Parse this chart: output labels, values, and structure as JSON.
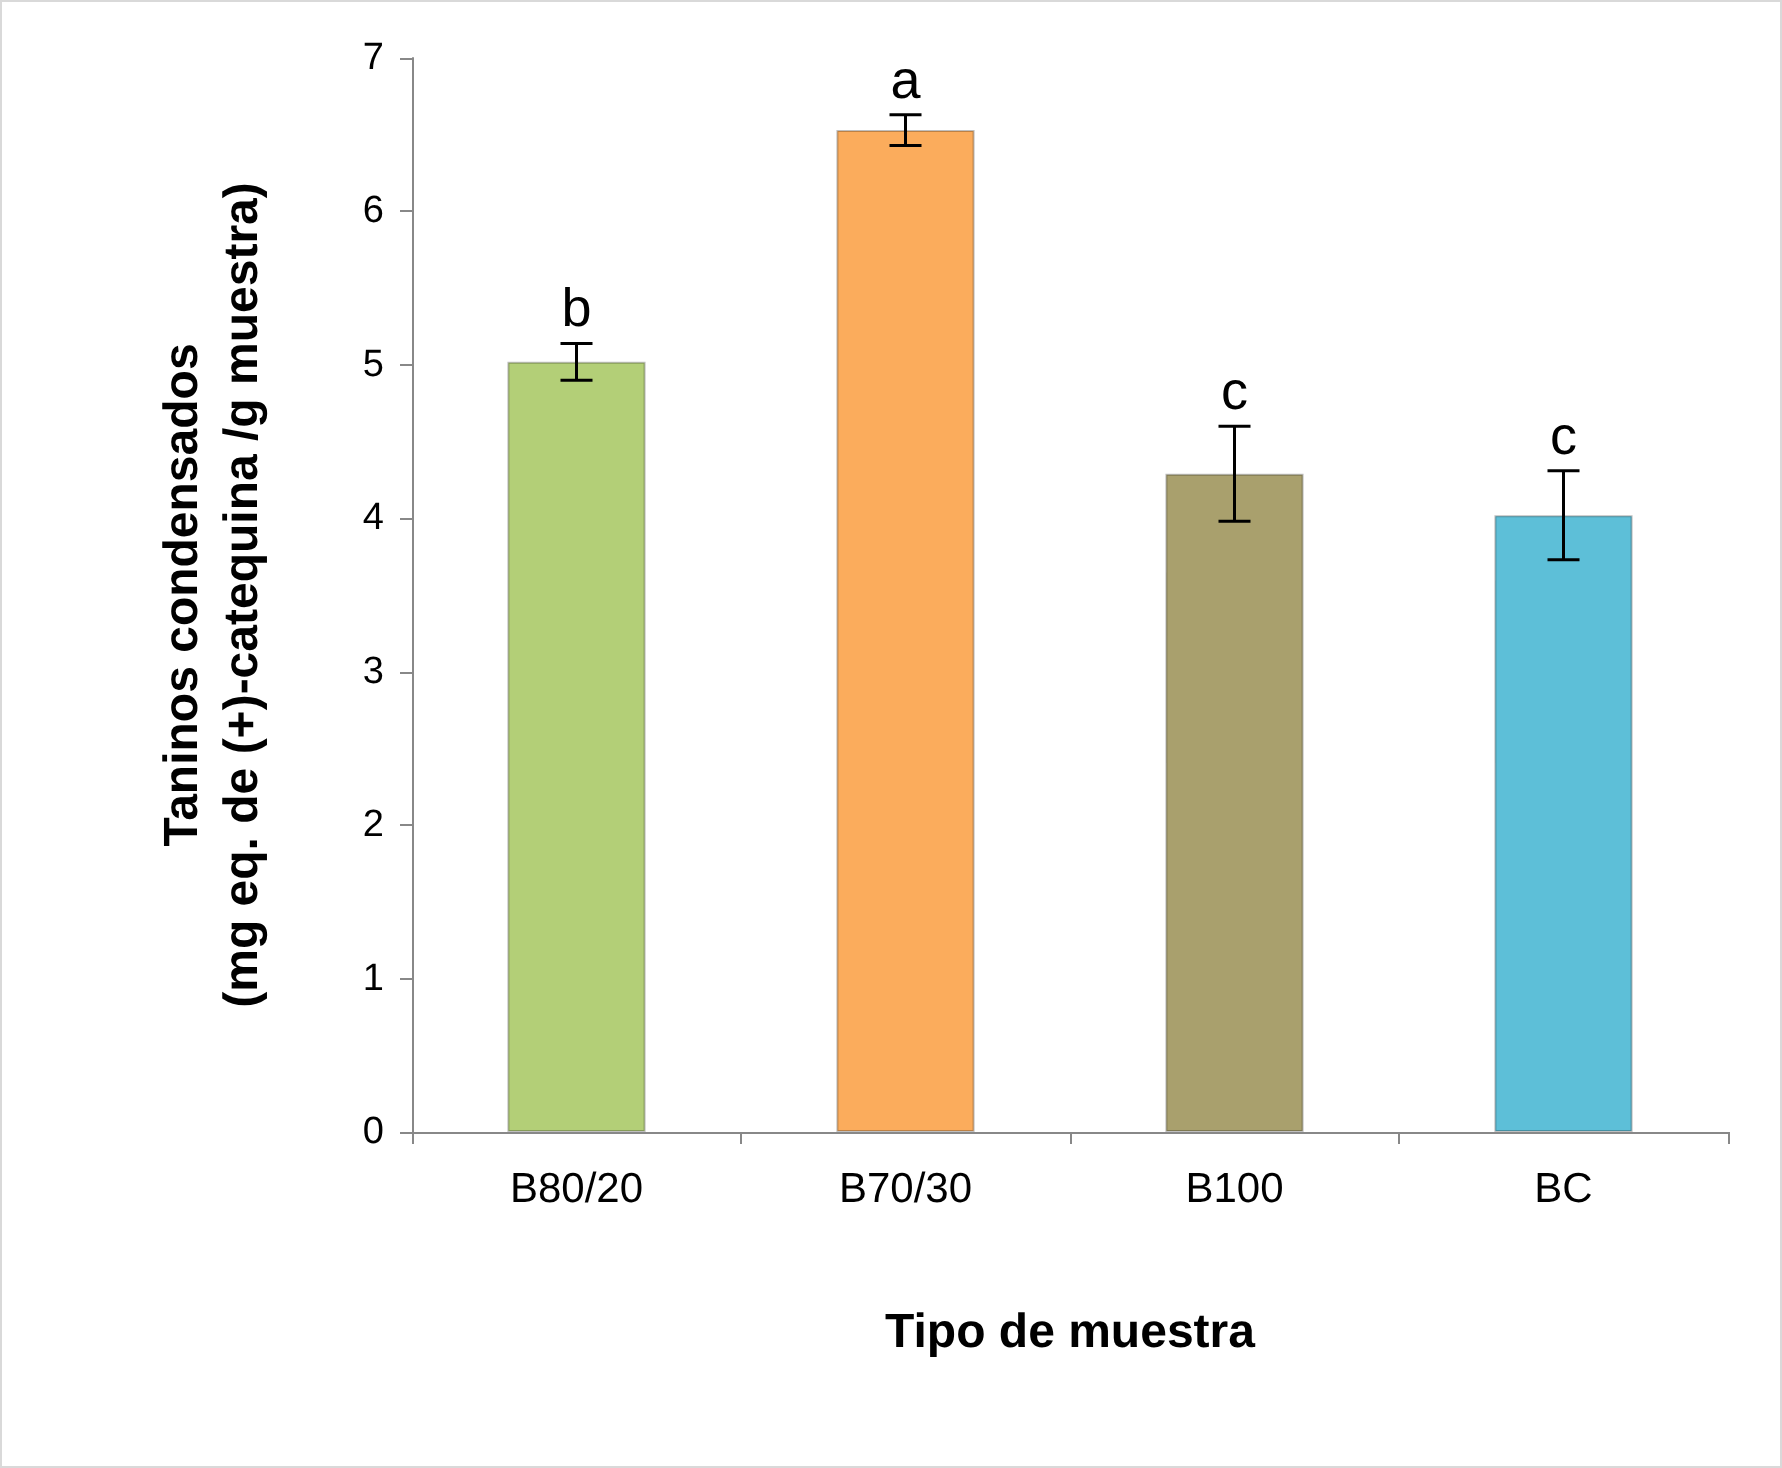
{
  "chart_data": {
    "type": "bar",
    "xlabel": "Tipo de muestra",
    "ylabel": "Taninos condensados\n(mg eq. de (+)-catequina /g muestra)",
    "categories": [
      "B80/20",
      "B70/30",
      "B100",
      "BC"
    ],
    "values": [
      5.02,
      6.53,
      4.29,
      4.02
    ],
    "errors": [
      0.12,
      0.1,
      0.31,
      0.29
    ],
    "colors": [
      "#b3cf77",
      "#fbac5c",
      "#a9a06d",
      "#5dbfd8"
    ],
    "ylim": [
      0,
      7
    ],
    "yticks": [
      0,
      1,
      2,
      3,
      4,
      5,
      6,
      7
    ],
    "grid": false,
    "annotations": [
      {
        "text": "b",
        "x": "B80/20",
        "y": 5.14
      },
      {
        "text": "a",
        "x": "B70/30",
        "y": 6.63
      },
      {
        "text": "c",
        "x": "B100",
        "y": 4.6
      },
      {
        "text": "c",
        "x": "BC",
        "y": 4.31
      }
    ]
  }
}
